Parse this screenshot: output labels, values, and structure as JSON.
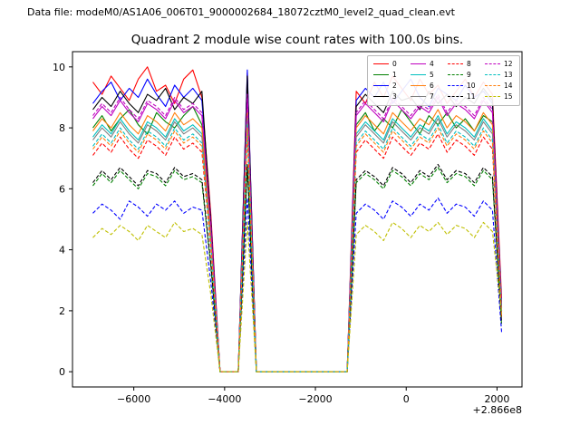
{
  "header": {
    "text": "Data file: modeM0/AS1A06_006T01_9000002684_18072cztM0_level2_quad_clean.evt"
  },
  "chart_data": {
    "type": "line",
    "title": "Quadrant 2 module wise count rates with 100.0s bins.",
    "xlabel": "",
    "ylabel": "",
    "x_offset_label": "+2.866e8",
    "xlim": [
      -7350,
      2550
    ],
    "ylim": [
      -0.5,
      10.5
    ],
    "grid": false,
    "legend_position": "upper right",
    "x_ticks": [
      {
        "v": -6000,
        "label": "−6000"
      },
      {
        "v": -4000,
        "label": "−4000"
      },
      {
        "v": -2000,
        "label": "−2000"
      },
      {
        "v": 0,
        "label": "0"
      },
      {
        "v": 2000,
        "label": "2000"
      }
    ],
    "y_ticks": [
      {
        "v": 0,
        "label": "0"
      },
      {
        "v": 2,
        "label": "2"
      },
      {
        "v": 4,
        "label": "4"
      },
      {
        "v": 6,
        "label": "6"
      },
      {
        "v": 8,
        "label": "8"
      },
      {
        "v": 10,
        "label": "10"
      }
    ],
    "x": [
      -6900,
      -6700,
      -6500,
      -6300,
      -6100,
      -5900,
      -5700,
      -5500,
      -5300,
      -5100,
      -4900,
      -4700,
      -4500,
      -4300,
      -4100,
      -3900,
      -3700,
      -3500,
      -3300,
      -3100,
      -2900,
      -2700,
      -2500,
      -2300,
      -2100,
      -1900,
      -1700,
      -1500,
      -1300,
      -1100,
      -900,
      -700,
      -500,
      -300,
      -100,
      100,
      300,
      500,
      700,
      900,
      1100,
      1300,
      1500,
      1700,
      1900,
      2100
    ],
    "series": [
      {
        "name": "0",
        "color": "#ff0000",
        "dashed": false,
        "values": [
          9.5,
          9.1,
          9.7,
          9.3,
          8.9,
          9.6,
          10.0,
          9.2,
          9.4,
          8.8,
          9.6,
          9.9,
          9.0,
          5.1,
          0,
          0,
          0,
          9.8,
          0,
          0,
          0,
          0,
          0,
          0,
          0,
          0,
          0,
          0,
          0,
          9.2,
          8.8,
          9.5,
          9.0,
          9.7,
          9.3,
          8.9,
          9.6,
          9.1,
          9.4,
          8.8,
          9.2,
          9.6,
          9.0,
          9.5,
          9.1,
          2.4
        ]
      },
      {
        "name": "1",
        "color": "#008000",
        "dashed": false,
        "values": [
          8.0,
          8.4,
          7.9,
          8.3,
          8.6,
          8.1,
          7.8,
          8.5,
          8.2,
          8.0,
          8.4,
          8.7,
          8.1,
          4.5,
          0,
          0,
          0,
          8.3,
          0,
          0,
          0,
          0,
          0,
          0,
          0,
          0,
          0,
          0,
          0,
          8.1,
          8.5,
          7.9,
          8.3,
          8.0,
          8.6,
          8.2,
          7.8,
          8.4,
          8.1,
          8.5,
          8.0,
          8.3,
          7.9,
          8.4,
          8.2,
          2.0
        ]
      },
      {
        "name": "2",
        "color": "#0000ff",
        "dashed": false,
        "values": [
          8.8,
          9.2,
          9.5,
          8.9,
          9.3,
          9.0,
          9.6,
          9.1,
          8.7,
          9.4,
          9.0,
          9.3,
          8.9,
          4.9,
          0,
          0,
          0,
          9.9,
          0,
          0,
          0,
          0,
          0,
          0,
          0,
          0,
          0,
          0,
          0,
          8.9,
          9.3,
          9.0,
          9.5,
          8.8,
          9.2,
          9.6,
          9.0,
          8.7,
          9.3,
          9.1,
          8.9,
          9.4,
          9.0,
          9.2,
          8.8,
          2.2
        ]
      },
      {
        "name": "3",
        "color": "#000000",
        "dashed": false,
        "values": [
          8.6,
          9.0,
          8.7,
          9.2,
          8.8,
          8.5,
          9.1,
          8.9,
          9.3,
          8.6,
          9.0,
          8.8,
          9.2,
          4.8,
          0,
          0,
          0,
          9.7,
          0,
          0,
          0,
          0,
          0,
          0,
          0,
          0,
          0,
          0,
          0,
          8.7,
          9.1,
          8.8,
          8.5,
          9.2,
          8.9,
          9.0,
          8.6,
          9.2,
          8.8,
          9.1,
          8.7,
          9.0,
          8.8,
          9.3,
          8.9,
          2.1
        ]
      },
      {
        "name": "4",
        "color": "#bf00bf",
        "dashed": false,
        "values": [
          8.3,
          8.7,
          8.4,
          8.9,
          8.5,
          8.2,
          8.8,
          8.6,
          8.3,
          8.9,
          8.5,
          8.7,
          8.4,
          4.6,
          0,
          0,
          0,
          9.0,
          0,
          0,
          0,
          0,
          0,
          0,
          0,
          0,
          0,
          0,
          0,
          8.4,
          8.8,
          8.5,
          8.2,
          8.9,
          8.6,
          8.3,
          8.7,
          8.5,
          9.0,
          8.4,
          8.8,
          8.6,
          8.3,
          8.9,
          8.5,
          2.0
        ]
      },
      {
        "name": "5",
        "color": "#00bfbf",
        "dashed": false,
        "values": [
          7.7,
          8.1,
          7.8,
          8.3,
          7.9,
          7.6,
          8.2,
          8.0,
          7.7,
          8.3,
          7.9,
          8.1,
          7.8,
          4.3,
          0,
          0,
          0,
          8.4,
          0,
          0,
          0,
          0,
          0,
          0,
          0,
          0,
          0,
          0,
          0,
          7.8,
          8.2,
          7.9,
          7.6,
          8.3,
          8.0,
          7.7,
          8.1,
          7.9,
          8.4,
          7.8,
          8.2,
          8.0,
          7.7,
          8.3,
          7.9,
          1.9
        ]
      },
      {
        "name": "6",
        "color": "#ff7f0e",
        "dashed": false,
        "values": [
          7.9,
          8.3,
          8.0,
          8.5,
          8.1,
          7.8,
          8.4,
          8.2,
          7.9,
          8.5,
          8.1,
          8.3,
          8.0,
          4.4,
          0,
          0,
          0,
          8.6,
          0,
          0,
          0,
          0,
          0,
          0,
          0,
          0,
          0,
          0,
          0,
          8.0,
          8.4,
          8.1,
          7.8,
          8.5,
          8.2,
          7.9,
          8.3,
          8.1,
          8.6,
          8.0,
          8.4,
          8.2,
          7.9,
          8.5,
          8.1,
          2.0
        ]
      },
      {
        "name": "7",
        "color": "#7f7f7f",
        "dashed": false,
        "values": [
          7.6,
          8.0,
          7.7,
          8.2,
          7.8,
          7.5,
          8.1,
          7.9,
          7.6,
          8.2,
          7.8,
          8.0,
          7.7,
          4.2,
          0,
          0,
          0,
          8.3,
          0,
          0,
          0,
          0,
          0,
          0,
          0,
          0,
          0,
          0,
          0,
          7.7,
          8.1,
          7.8,
          7.5,
          8.2,
          7.9,
          7.6,
          8.0,
          7.8,
          8.3,
          7.7,
          8.1,
          7.9,
          7.6,
          8.2,
          7.8,
          1.9
        ]
      },
      {
        "name": "8",
        "color": "#ff0000",
        "dashed": true,
        "values": [
          7.1,
          7.5,
          7.2,
          7.7,
          7.3,
          7.0,
          7.6,
          7.4,
          7.1,
          7.7,
          7.3,
          7.5,
          7.2,
          4.0,
          0,
          0,
          0,
          7.8,
          0,
          0,
          0,
          0,
          0,
          0,
          0,
          0,
          0,
          0,
          0,
          7.2,
          7.6,
          7.3,
          7.0,
          7.7,
          7.4,
          7.1,
          7.5,
          7.3,
          7.8,
          7.2,
          7.6,
          7.4,
          7.1,
          7.7,
          7.3,
          1.8
        ]
      },
      {
        "name": "9",
        "color": "#008000",
        "dashed": true,
        "values": [
          6.1,
          6.5,
          6.2,
          6.6,
          6.3,
          6.0,
          6.5,
          6.4,
          6.1,
          6.6,
          6.3,
          6.4,
          6.2,
          3.4,
          0,
          0,
          0,
          6.7,
          0,
          0,
          0,
          0,
          0,
          0,
          0,
          0,
          0,
          0,
          0,
          6.2,
          6.5,
          6.3,
          6.0,
          6.6,
          6.4,
          6.1,
          6.5,
          6.3,
          6.7,
          6.2,
          6.5,
          6.4,
          6.1,
          6.6,
          6.3,
          1.5
        ]
      },
      {
        "name": "10",
        "color": "#0000ff",
        "dashed": true,
        "values": [
          5.2,
          5.5,
          5.3,
          5.0,
          5.6,
          5.4,
          5.1,
          5.5,
          5.3,
          5.6,
          5.2,
          5.4,
          5.3,
          2.9,
          0,
          0,
          0,
          5.7,
          0,
          0,
          0,
          0,
          0,
          0,
          0,
          0,
          0,
          0,
          0,
          5.2,
          5.5,
          5.3,
          5.0,
          5.6,
          5.4,
          5.1,
          5.5,
          5.3,
          5.7,
          5.2,
          5.5,
          5.4,
          5.1,
          5.6,
          5.3,
          1.3
        ]
      },
      {
        "name": "11",
        "color": "#000000",
        "dashed": true,
        "values": [
          6.2,
          6.6,
          6.3,
          6.7,
          6.4,
          6.1,
          6.6,
          6.5,
          6.2,
          6.7,
          6.4,
          6.5,
          6.3,
          3.5,
          0,
          0,
          0,
          6.8,
          0,
          0,
          0,
          0,
          0,
          0,
          0,
          0,
          0,
          0,
          0,
          6.3,
          6.6,
          6.4,
          6.1,
          6.7,
          6.5,
          6.2,
          6.6,
          6.4,
          6.8,
          6.3,
          6.6,
          6.5,
          6.2,
          6.7,
          6.4,
          1.6
        ]
      },
      {
        "name": "12",
        "color": "#bf00bf",
        "dashed": true,
        "values": [
          8.4,
          8.8,
          8.5,
          9.0,
          8.6,
          8.3,
          8.9,
          8.7,
          8.4,
          9.0,
          8.6,
          8.8,
          8.5,
          4.7,
          0,
          0,
          0,
          9.1,
          0,
          0,
          0,
          0,
          0,
          0,
          0,
          0,
          0,
          0,
          0,
          8.5,
          8.9,
          8.6,
          8.3,
          9.0,
          8.7,
          8.4,
          8.8,
          8.6,
          9.1,
          8.5,
          8.9,
          8.7,
          8.4,
          9.0,
          8.6,
          2.1
        ]
      },
      {
        "name": "13",
        "color": "#00bfbf",
        "dashed": true,
        "values": [
          7.4,
          7.8,
          7.5,
          8.0,
          7.6,
          7.3,
          7.9,
          7.7,
          7.4,
          8.0,
          7.6,
          7.8,
          7.5,
          4.1,
          0,
          0,
          0,
          8.1,
          0,
          0,
          0,
          0,
          0,
          0,
          0,
          0,
          0,
          0,
          0,
          7.5,
          7.9,
          7.6,
          7.3,
          8.0,
          7.7,
          7.4,
          7.8,
          7.6,
          8.1,
          7.5,
          7.9,
          7.7,
          7.4,
          8.0,
          7.6,
          1.9
        ]
      },
      {
        "name": "14",
        "color": "#ff7f0e",
        "dashed": true,
        "values": [
          7.3,
          7.7,
          7.4,
          7.9,
          7.5,
          7.2,
          7.8,
          7.6,
          7.3,
          7.9,
          7.5,
          7.7,
          7.4,
          4.1,
          0,
          0,
          0,
          8.0,
          0,
          0,
          0,
          0,
          0,
          0,
          0,
          0,
          0,
          0,
          0,
          7.4,
          7.8,
          7.5,
          7.2,
          7.9,
          7.6,
          7.3,
          7.7,
          7.5,
          8.0,
          7.4,
          7.8,
          7.6,
          7.3,
          7.9,
          7.5,
          1.8
        ]
      },
      {
        "name": "15",
        "color": "#bfbf00",
        "dashed": true,
        "values": [
          4.4,
          4.7,
          4.5,
          4.8,
          4.6,
          4.3,
          4.8,
          4.6,
          4.4,
          4.9,
          4.6,
          4.7,
          4.5,
          2.5,
          0,
          0,
          0,
          4.9,
          0,
          0,
          0,
          0,
          0,
          0,
          0,
          0,
          0,
          0,
          0,
          4.5,
          4.8,
          4.6,
          4.3,
          4.9,
          4.7,
          4.4,
          4.8,
          4.6,
          4.9,
          4.5,
          4.8,
          4.7,
          4.4,
          4.9,
          4.6,
          1.9
        ]
      }
    ]
  }
}
